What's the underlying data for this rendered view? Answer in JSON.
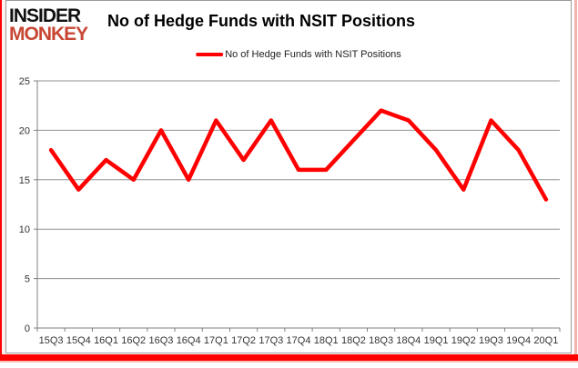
{
  "logo": {
    "line1": "INSIDER",
    "line2": "MONKEY"
  },
  "title": "No of Hedge Funds with NSIT Positions",
  "legend": {
    "label": "No of Hedge Funds with NSIT Positions"
  },
  "colors": {
    "line": "#FF0000",
    "logo_red": "#C74634",
    "grid": "#909090",
    "axis": "#7f7f7f",
    "tick_text": "#333333",
    "accent_bar": "#FF0000"
  },
  "chart_data": {
    "type": "line",
    "categories": [
      "15Q3",
      "15Q4",
      "16Q1",
      "16Q2",
      "16Q3",
      "16Q4",
      "17Q1",
      "17Q2",
      "17Q3",
      "17Q4",
      "18Q1",
      "18Q2",
      "18Q3",
      "18Q4",
      "19Q1",
      "19Q2",
      "19Q3",
      "19Q4",
      "20Q1"
    ],
    "values": [
      18,
      14,
      17,
      15,
      20,
      15,
      21,
      17,
      21,
      16,
      16,
      19,
      22,
      21,
      18,
      14,
      21,
      18,
      13
    ],
    "series_name": "No of Hedge Funds with NSIT Positions",
    "title": "No of Hedge Funds with NSIT Positions",
    "xlabel": "",
    "ylabel": "",
    "ylim": [
      0,
      25
    ],
    "yticks": [
      0,
      5,
      10,
      15,
      20,
      25
    ],
    "grid": true,
    "legend_position": "top"
  }
}
